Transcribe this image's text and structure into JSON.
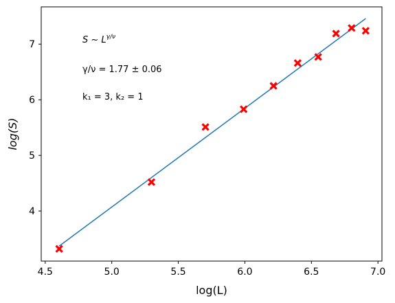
{
  "chart_data": {
    "type": "scatter",
    "title": "",
    "xlabel": "log(L)",
    "ylabel": "log(S)",
    "xlim": [
      4.47,
      7.03
    ],
    "ylim": [
      3.1,
      7.67
    ],
    "xticks": [
      4.5,
      5.0,
      5.5,
      6.0,
      6.5,
      7.0
    ],
    "xtick_labels": [
      "4.5",
      "5.0",
      "5.5",
      "6.0",
      "6.5",
      "7.0"
    ],
    "yticks": [
      4,
      5,
      6,
      7
    ],
    "ytick_labels": [
      "4",
      "5",
      "6",
      "7"
    ],
    "grid": false,
    "series": [
      {
        "kind": "scatter",
        "marker": "X",
        "color": "#ff0000",
        "points": [
          [
            4.605,
            3.32
          ],
          [
            5.298,
            4.52
          ],
          [
            5.704,
            5.51
          ],
          [
            5.991,
            5.83
          ],
          [
            6.215,
            6.25
          ],
          [
            6.397,
            6.66
          ],
          [
            6.551,
            6.77
          ],
          [
            6.685,
            7.19
          ],
          [
            6.802,
            7.29
          ],
          [
            6.908,
            7.24
          ]
        ]
      },
      {
        "kind": "line",
        "color": "#1f77b4",
        "points": [
          [
            4.605,
            3.37
          ],
          [
            6.908,
            7.46
          ]
        ]
      }
    ],
    "annotations": {
      "line1": "S ~ L",
      "line1_sup": "γ/ν",
      "line2": "γ/ν = 1.77 ± 0.06",
      "line3": "k₁ = 3, k₂ = 1"
    }
  }
}
